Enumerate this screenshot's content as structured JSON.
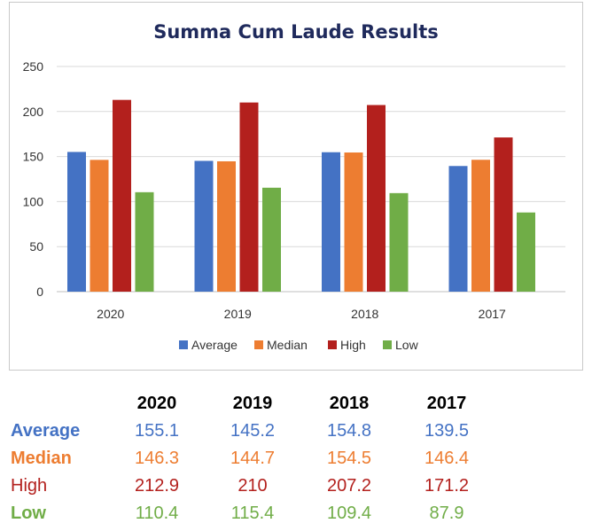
{
  "colors": {
    "Average": "#4472c4",
    "Median": "#ed7d31",
    "High": "#b3201d",
    "Low": "#70ad47"
  },
  "chart_data": {
    "type": "bar",
    "title": "Summa Cum Laude Results",
    "categories": [
      "2020",
      "2019",
      "2018",
      "2017"
    ],
    "series": [
      {
        "name": "Average",
        "values": [
          155.1,
          145.2,
          154.8,
          139.5
        ]
      },
      {
        "name": "Median",
        "values": [
          146.3,
          144.7,
          154.5,
          146.4
        ]
      },
      {
        "name": "High",
        "values": [
          212.9,
          210,
          207.2,
          171.2
        ]
      },
      {
        "name": "Low",
        "values": [
          110.4,
          115.4,
          109.4,
          87.9
        ]
      }
    ],
    "ylim": [
      0,
      250
    ],
    "yticks": [
      "0",
      "50",
      "100",
      "150",
      "200",
      "250"
    ],
    "grid": true,
    "legend_position": "bottom"
  },
  "table": {
    "headers": [
      "2020",
      "2019",
      "2018",
      "2017"
    ],
    "rows": [
      {
        "label": "Average",
        "values": [
          "155.1",
          "145.2",
          "154.8",
          "139.5"
        ]
      },
      {
        "label": "Median",
        "values": [
          "146.3",
          "144.7",
          "154.5",
          "146.4"
        ]
      },
      {
        "label": "High",
        "values": [
          "212.9",
          "210",
          "207.2",
          "171.2"
        ]
      },
      {
        "label": "Low",
        "values": [
          "110.4",
          "115.4",
          "109.4",
          "87.9"
        ]
      }
    ]
  }
}
